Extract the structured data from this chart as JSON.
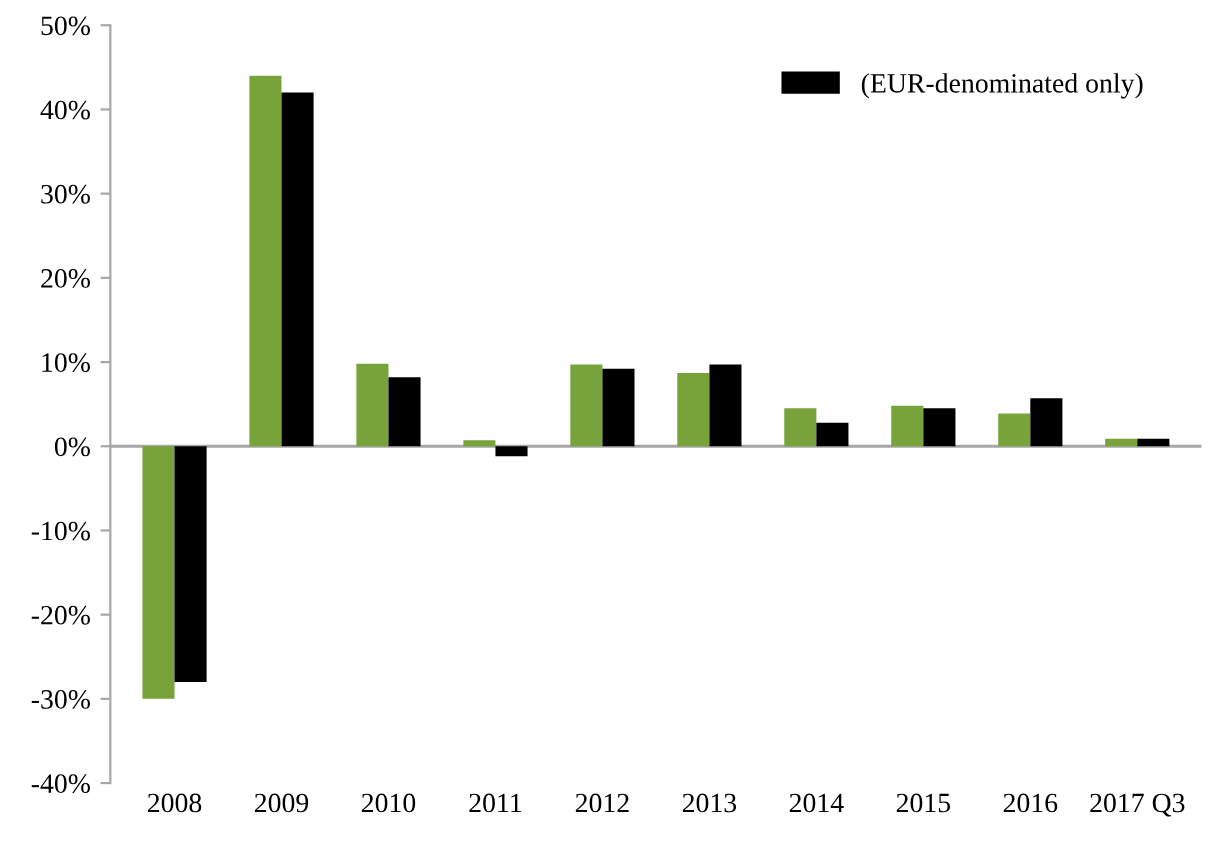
{
  "chart_data": {
    "type": "bar",
    "categories": [
      "2008",
      "2009",
      "2010",
      "2011",
      "2012",
      "2013",
      "2014",
      "2015",
      "2016",
      "2017 Q3"
    ],
    "series": [
      {
        "color": "#77a33a",
        "values": [
          -30,
          44,
          9.8,
          0.7,
          9.7,
          8.7,
          4.5,
          4.8,
          3.9,
          0.9
        ]
      },
      {
        "name": "(EUR-denominated only)",
        "color": "#000000",
        "values": [
          -28,
          42,
          8.2,
          -1.2,
          9.2,
          9.7,
          2.8,
          4.5,
          5.7,
          0.9
        ]
      }
    ],
    "ylim": [
      -40,
      50
    ],
    "yticks": [
      {
        "value": -40,
        "label": "-40%"
      },
      {
        "value": -30,
        "label": "-30%"
      },
      {
        "value": -20,
        "label": "-20%"
      },
      {
        "value": -10,
        "label": "-10%"
      },
      {
        "value": 0,
        "label": "0%"
      },
      {
        "value": 10,
        "label": "10%"
      },
      {
        "value": 20,
        "label": "20%"
      },
      {
        "value": 30,
        "label": "30%"
      },
      {
        "value": 40,
        "label": "40%"
      },
      {
        "value": 50,
        "label": "50%"
      }
    ],
    "ref_lines": [
      {
        "axis": "y",
        "value": 0,
        "color": "#a6a6a6"
      }
    ],
    "grid": false,
    "legend": "top right"
  }
}
